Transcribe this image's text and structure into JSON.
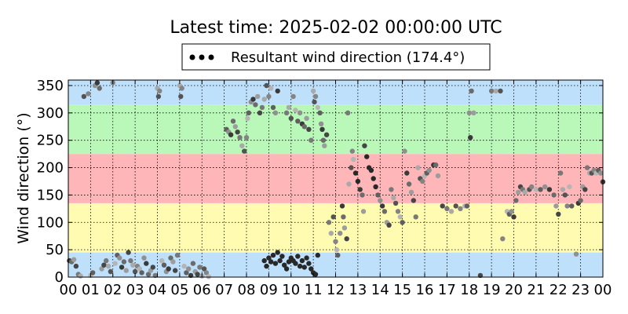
{
  "chart_data": {
    "type": "scatter",
    "title": "Latest time: 2025-02-02 00:00:00 UTC",
    "ylabel": "Wind direction (°)",
    "xlabel": "",
    "xlim": [
      0,
      24
    ],
    "ylim": [
      0,
      360
    ],
    "x_ticks": [
      "00",
      "01",
      "02",
      "03",
      "04",
      "05",
      "06",
      "07",
      "08",
      "09",
      "10",
      "11",
      "12",
      "13",
      "14",
      "15",
      "16",
      "17",
      "18",
      "19",
      "20",
      "21",
      "22",
      "23",
      "00"
    ],
    "y_ticks": [
      0,
      50,
      100,
      150,
      200,
      250,
      300,
      350
    ],
    "grid": true,
    "legend": {
      "label": "Resultant wind direction (174.4°)",
      "placement": "top-center",
      "marker_color": "#000000"
    },
    "bands": [
      {
        "from": 0,
        "to": 45,
        "color": "#bfe0fb"
      },
      {
        "from": 45,
        "to": 135,
        "color": "#fffbb0"
      },
      {
        "from": 135,
        "to": 225,
        "color": "#ffb6b8"
      },
      {
        "from": 225,
        "to": 315,
        "color": "#baf8ba"
      },
      {
        "from": 315,
        "to": 360,
        "color": "#bfe0fb"
      }
    ],
    "series": [
      {
        "color_range": [
          "#3a3a3a",
          "#b5b5b5"
        ],
        "points": [
          [
            0.05,
            30
          ],
          [
            0.15,
            28
          ],
          [
            0.25,
            32
          ],
          [
            0.35,
            20
          ],
          [
            0.45,
            5
          ],
          [
            0.55,
            2
          ],
          [
            0.7,
            330
          ],
          [
            0.9,
            335
          ],
          [
            1.0,
            3
          ],
          [
            1.1,
            8
          ],
          [
            1.2,
            350
          ],
          [
            1.3,
            355
          ],
          [
            1.4,
            345
          ],
          [
            1.5,
            15
          ],
          [
            1.6,
            22
          ],
          [
            1.7,
            30
          ],
          [
            1.8,
            20
          ],
          [
            1.9,
            10
          ],
          [
            2.0,
            355
          ],
          [
            2.1,
            25
          ],
          [
            2.2,
            40
          ],
          [
            2.3,
            35
          ],
          [
            2.4,
            18
          ],
          [
            2.5,
            28
          ],
          [
            2.6,
            12
          ],
          [
            2.7,
            45
          ],
          [
            2.8,
            30
          ],
          [
            2.9,
            22
          ],
          [
            3.0,
            10
          ],
          [
            3.1,
            20
          ],
          [
            3.2,
            15
          ],
          [
            3.3,
            8
          ],
          [
            3.4,
            35
          ],
          [
            3.5,
            25
          ],
          [
            3.6,
            5
          ],
          [
            3.7,
            12
          ],
          [
            3.8,
            18
          ],
          [
            3.9,
            3
          ],
          [
            4.0,
            345
          ],
          [
            4.05,
            330
          ],
          [
            4.1,
            340
          ],
          [
            4.2,
            30
          ],
          [
            4.3,
            22
          ],
          [
            4.4,
            10
          ],
          [
            4.5,
            15
          ],
          [
            4.6,
            35
          ],
          [
            4.7,
            28
          ],
          [
            4.8,
            12
          ],
          [
            4.9,
            40
          ],
          [
            5.0,
            350
          ],
          [
            5.05,
            330
          ],
          [
            5.1,
            345
          ],
          [
            5.2,
            20
          ],
          [
            5.3,
            8
          ],
          [
            5.4,
            15
          ],
          [
            5.5,
            3
          ],
          [
            5.6,
            25
          ],
          [
            5.7,
            10
          ],
          [
            5.8,
            5
          ],
          [
            5.9,
            18
          ],
          [
            6.0,
            2
          ],
          [
            6.1,
            15
          ],
          [
            6.2,
            8
          ],
          [
            6.3,
            1
          ],
          [
            7.1,
            270
          ],
          [
            7.2,
            265
          ],
          [
            7.3,
            260
          ],
          [
            7.4,
            285
          ],
          [
            7.5,
            275
          ],
          [
            7.6,
            265
          ],
          [
            7.7,
            255
          ],
          [
            7.8,
            240
          ],
          [
            7.9,
            230
          ],
          [
            8.0,
            255
          ],
          [
            8.05,
            290
          ],
          [
            8.1,
            300
          ],
          [
            8.2,
            320
          ],
          [
            8.3,
            325
          ],
          [
            8.4,
            315
          ],
          [
            8.5,
            330
          ],
          [
            8.6,
            300
          ],
          [
            8.7,
            310
          ],
          [
            8.8,
            325
          ],
          [
            8.9,
            350
          ],
          [
            9.0,
            330
          ],
          [
            9.1,
            345
          ],
          [
            9.2,
            310
          ],
          [
            9.3,
            300
          ],
          [
            9.4,
            340
          ],
          [
            8.8,
            30
          ],
          [
            8.9,
            20
          ],
          [
            9.0,
            35
          ],
          [
            9.1,
            28
          ],
          [
            9.2,
            40
          ],
          [
            9.3,
            25
          ],
          [
            9.4,
            45
          ],
          [
            9.5,
            30
          ],
          [
            9.6,
            38
          ],
          [
            9.7,
            22
          ],
          [
            9.8,
            15
          ],
          [
            9.9,
            28
          ],
          [
            10.0,
            35
          ],
          [
            10.1,
            30
          ],
          [
            10.2,
            25
          ],
          [
            10.3,
            38
          ],
          [
            10.4,
            20
          ],
          [
            10.5,
            30
          ],
          [
            10.6,
            18
          ],
          [
            10.7,
            35
          ],
          [
            10.8,
            25
          ],
          [
            10.9,
            15
          ],
          [
            11.0,
            8
          ],
          [
            11.1,
            5
          ],
          [
            11.2,
            40
          ],
          [
            9.8,
            300
          ],
          [
            9.9,
            310
          ],
          [
            10.0,
            290
          ],
          [
            10.1,
            330
          ],
          [
            10.2,
            305
          ],
          [
            10.3,
            285
          ],
          [
            10.4,
            300
          ],
          [
            10.5,
            280
          ],
          [
            10.6,
            275
          ],
          [
            10.7,
            290
          ],
          [
            10.8,
            270
          ],
          [
            10.9,
            250
          ],
          [
            11.0,
            340
          ],
          [
            11.05,
            320
          ],
          [
            11.1,
            330
          ],
          [
            11.2,
            310
          ],
          [
            11.3,
            300
          ],
          [
            11.35,
            280
          ],
          [
            11.4,
            270
          ],
          [
            11.45,
            250
          ],
          [
            11.5,
            240
          ],
          [
            11.6,
            260
          ],
          [
            11.7,
            100
          ],
          [
            11.8,
            80
          ],
          [
            11.9,
            110
          ],
          [
            12.0,
            65
          ],
          [
            12.05,
            50
          ],
          [
            12.1,
            40
          ],
          [
            12.2,
            80
          ],
          [
            12.3,
            130
          ],
          [
            12.35,
            110
          ],
          [
            12.4,
            90
          ],
          [
            12.5,
            70
          ],
          [
            12.55,
            300
          ],
          [
            12.6,
            170
          ],
          [
            12.7,
            200
          ],
          [
            12.75,
            230
          ],
          [
            12.8,
            215
          ],
          [
            12.9,
            190
          ],
          [
            13.0,
            175
          ],
          [
            13.1,
            160
          ],
          [
            13.2,
            150
          ],
          [
            13.25,
            120
          ],
          [
            13.3,
            240
          ],
          [
            13.4,
            220
          ],
          [
            13.5,
            200
          ],
          [
            13.6,
            195
          ],
          [
            13.7,
            180
          ],
          [
            13.8,
            165
          ],
          [
            13.9,
            150
          ],
          [
            14.0,
            140
          ],
          [
            14.1,
            130
          ],
          [
            14.2,
            120
          ],
          [
            14.3,
            100
          ],
          [
            14.4,
            95
          ],
          [
            14.5,
            160
          ],
          [
            14.6,
            145
          ],
          [
            14.7,
            135
          ],
          [
            14.8,
            120
          ],
          [
            14.9,
            110
          ],
          [
            15.0,
            100
          ],
          [
            15.1,
            230
          ],
          [
            15.2,
            190
          ],
          [
            15.3,
            170
          ],
          [
            15.4,
            155
          ],
          [
            15.5,
            140
          ],
          [
            15.6,
            110
          ],
          [
            15.7,
            200
          ],
          [
            15.8,
            180
          ],
          [
            15.9,
            175
          ],
          [
            16.0,
            185
          ],
          [
            16.1,
            190
          ],
          [
            16.2,
            195
          ],
          [
            16.4,
            205
          ],
          [
            16.5,
            205
          ],
          [
            16.6,
            185
          ],
          [
            16.8,
            130
          ],
          [
            17.0,
            125
          ],
          [
            17.2,
            120
          ],
          [
            17.4,
            130
          ],
          [
            17.6,
            125
          ],
          [
            17.8,
            130
          ],
          [
            17.9,
            130
          ],
          [
            18.0,
            300
          ],
          [
            18.05,
            255
          ],
          [
            18.1,
            340
          ],
          [
            18.2,
            300
          ],
          [
            18.5,
            3
          ],
          [
            19.0,
            340
          ],
          [
            19.2,
            340
          ],
          [
            19.4,
            340
          ],
          [
            19.5,
            70
          ],
          [
            19.7,
            120
          ],
          [
            19.8,
            115
          ],
          [
            19.9,
            120
          ],
          [
            20.0,
            110
          ],
          [
            20.1,
            140
          ],
          [
            20.2,
            155
          ],
          [
            20.3,
            165
          ],
          [
            20.4,
            160
          ],
          [
            20.5,
            155
          ],
          [
            20.7,
            160
          ],
          [
            20.8,
            165
          ],
          [
            21.0,
            160
          ],
          [
            21.2,
            160
          ],
          [
            21.4,
            165
          ],
          [
            21.6,
            160
          ],
          [
            21.8,
            150
          ],
          [
            21.9,
            130
          ],
          [
            22.0,
            115
          ],
          [
            22.1,
            190
          ],
          [
            22.2,
            160
          ],
          [
            22.3,
            150
          ],
          [
            22.4,
            130
          ],
          [
            22.5,
            165
          ],
          [
            22.6,
            130
          ],
          [
            22.8,
            42
          ],
          [
            22.9,
            135
          ],
          [
            23.0,
            140
          ],
          [
            23.1,
            165
          ],
          [
            23.2,
            160
          ],
          [
            23.3,
            200
          ],
          [
            23.4,
            190
          ],
          [
            23.5,
            190
          ],
          [
            23.6,
            195
          ],
          [
            23.7,
            190
          ],
          [
            23.8,
            195
          ],
          [
            23.9,
            190
          ],
          [
            24.0,
            174
          ]
        ]
      }
    ]
  }
}
